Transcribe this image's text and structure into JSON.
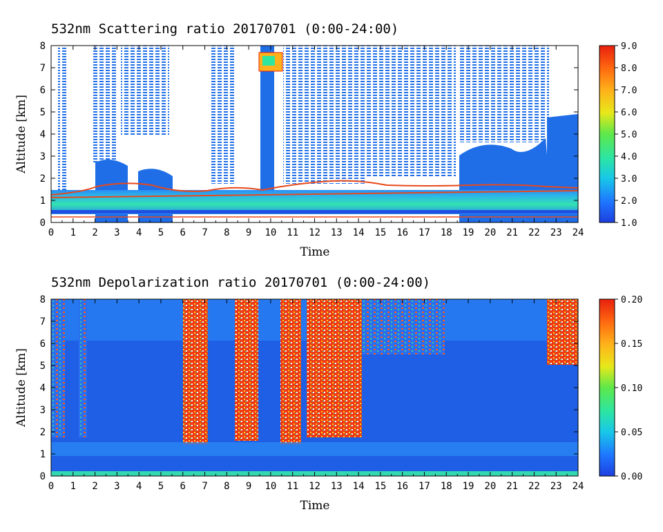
{
  "chart_data": [
    {
      "type": "heatmap",
      "title": "532nm Scattering ratio  20170701 (0:00-24:00)",
      "xlabel": "Time",
      "ylabel": "Altitude [km]",
      "xlim": [
        0,
        24
      ],
      "ylim": [
        0,
        8
      ],
      "x_ticks": [
        "0",
        "1",
        "2",
        "3",
        "4",
        "5",
        "6",
        "7",
        "8",
        "9",
        "10",
        "11",
        "12",
        "13",
        "14",
        "15",
        "16",
        "17",
        "18",
        "19",
        "20",
        "21",
        "22",
        "23",
        "24"
      ],
      "y_ticks": [
        "0",
        "1",
        "2",
        "3",
        "4",
        "5",
        "6",
        "7",
        "8"
      ],
      "colorbar": {
        "range": [
          1.0,
          9.0
        ],
        "ticks": [
          "1.0",
          "2.0",
          "3.0",
          "4.0",
          "5.0",
          "6.0",
          "7.0",
          "8.0",
          "9.0"
        ]
      },
      "features": {
        "boundary_layer_top_km": 1.4,
        "high_clouds": [
          {
            "time_start": 9.6,
            "time_end": 10.4,
            "alt_bottom": 7.0,
            "alt_top": 7.7
          }
        ],
        "late_cloud_layer": {
          "time_start": 22.6,
          "time_end": 24,
          "alt_top": 5.2
        }
      }
    },
    {
      "type": "heatmap",
      "title": "532nm Depolarization ratio  20170701 (0:00-24:00)",
      "xlabel": "Time",
      "ylabel": "Altitude [km]",
      "xlim": [
        0,
        24
      ],
      "ylim": [
        0,
        8
      ],
      "x_ticks": [
        "0",
        "1",
        "2",
        "3",
        "4",
        "5",
        "6",
        "7",
        "8",
        "9",
        "10",
        "11",
        "12",
        "13",
        "14",
        "15",
        "16",
        "17",
        "18",
        "19",
        "20",
        "21",
        "22",
        "23",
        "24"
      ],
      "y_ticks": [
        "0",
        "1",
        "2",
        "3",
        "4",
        "5",
        "6",
        "7",
        "8"
      ],
      "colorbar": {
        "range": [
          0.0,
          0.2
        ],
        "ticks": [
          "0.00",
          "0.05",
          "0.10",
          "0.15",
          "0.20"
        ]
      },
      "features": {
        "dust_columns": [
          {
            "time_start": 6.0,
            "time_end": 7.1
          },
          {
            "time_start": 8.5,
            "time_end": 9.4
          },
          {
            "time_start": 10.6,
            "time_end": 11.5
          },
          {
            "time_start": 11.7,
            "time_end": 14.1
          }
        ],
        "late_high_layer": {
          "time_start": 22.6,
          "time_end": 24,
          "alt_bottom": 5.0
        }
      }
    }
  ]
}
